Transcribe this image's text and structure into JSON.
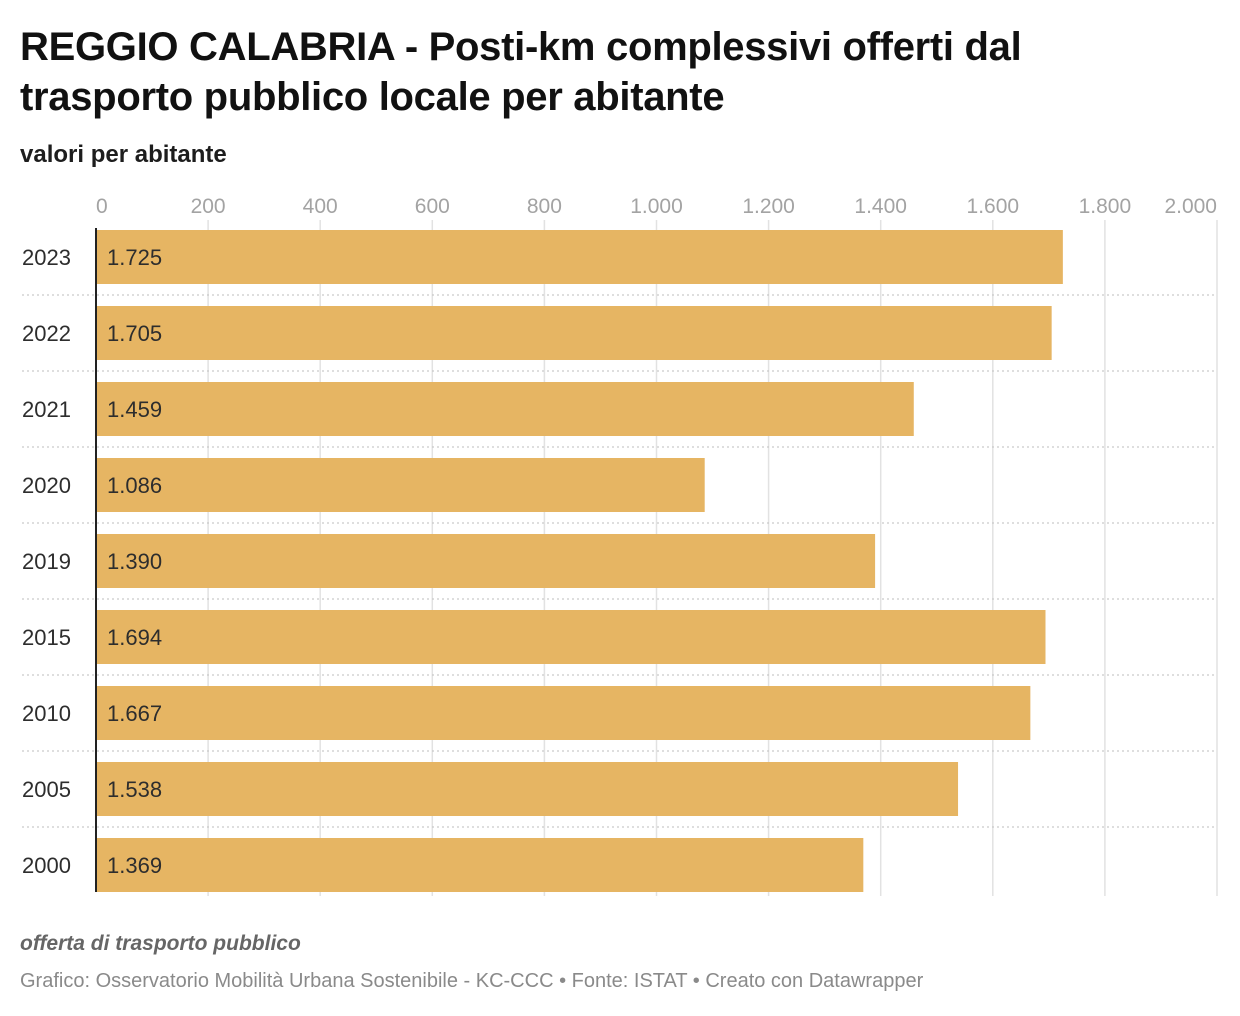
{
  "title": "REGGIO CALABRIA - Posti-km complessivi offerti dal trasporto pubblico locale per abitante",
  "subtitle": "valori per abitante",
  "note": "offerta di trasporto pubblico",
  "footer": "Grafico: Osservatorio Mobilità Urbana Sostenibile - KC-CCC • Fonte: ISTAT • Creato con Datawrapper",
  "colors": {
    "bar": "#e6b563",
    "grid": "#e2e2e2",
    "axis_text": "#a3a3a3",
    "label_text": "#2d2d2d"
  },
  "chart_data": {
    "type": "bar",
    "orientation": "horizontal",
    "categories": [
      "2023",
      "2022",
      "2021",
      "2020",
      "2019",
      "2015",
      "2010",
      "2005",
      "2000"
    ],
    "values": [
      1725,
      1705,
      1459,
      1086,
      1390,
      1694,
      1667,
      1538,
      1369
    ],
    "value_labels": [
      "1.725",
      "1.705",
      "1.459",
      "1.086",
      "1.390",
      "1.694",
      "1.667",
      "1.538",
      "1.369"
    ],
    "xlim": [
      0,
      2000
    ],
    "ticks": [
      0,
      200,
      400,
      600,
      800,
      1000,
      1200,
      1400,
      1600,
      1800,
      2000
    ],
    "tick_labels": [
      "0",
      "200",
      "400",
      "600",
      "800",
      "1.000",
      "1.200",
      "1.400",
      "1.600",
      "1.800",
      "2.000"
    ],
    "grid": true
  }
}
